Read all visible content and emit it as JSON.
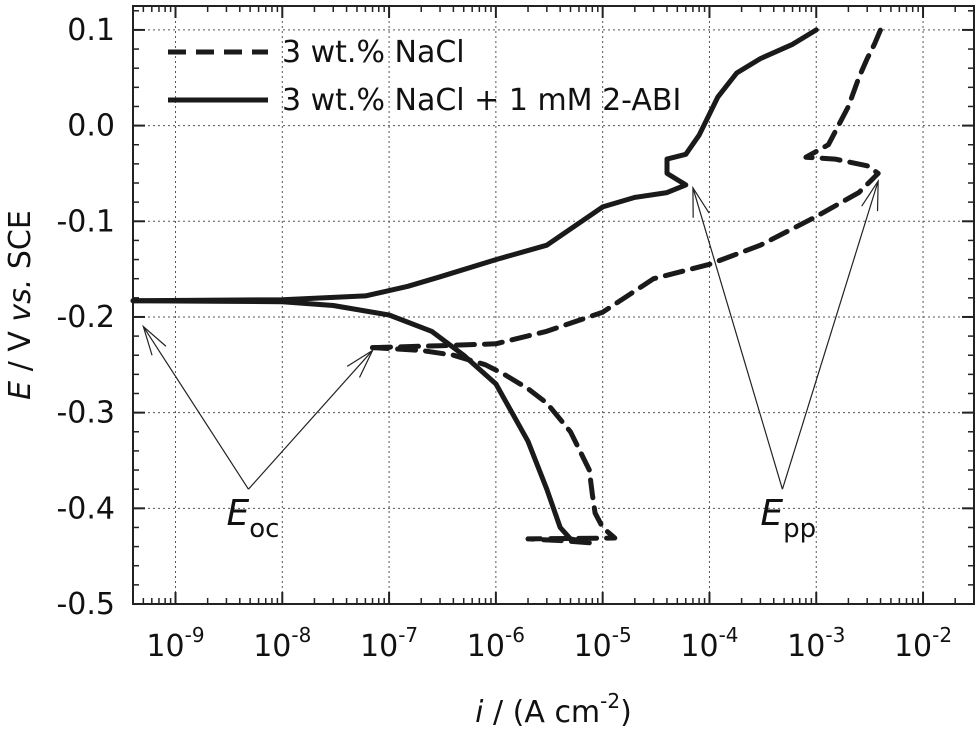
{
  "chart_data": {
    "type": "line",
    "xlabel": {
      "italic": "i",
      "text": " / (A cm",
      "sup": "-2",
      "end": ")"
    },
    "ylabel": {
      "italic": "E",
      "text": " / V ",
      "italic2": "vs.",
      "text2": " SCE"
    },
    "x_scale": "log",
    "xlim": [
      4e-10,
      0.03
    ],
    "ylim": [
      -0.5,
      0.125
    ],
    "x_ticks": [
      {
        "value": 1e-09,
        "base": "10",
        "exp": "-9"
      },
      {
        "value": 1e-08,
        "base": "10",
        "exp": "-8"
      },
      {
        "value": 1e-07,
        "base": "10",
        "exp": "-7"
      },
      {
        "value": 1e-06,
        "base": "10",
        "exp": "-6"
      },
      {
        "value": 1e-05,
        "base": "10",
        "exp": "-5"
      },
      {
        "value": 0.0001,
        "base": "10",
        "exp": "-4"
      },
      {
        "value": 0.001,
        "base": "10",
        "exp": "-3"
      },
      {
        "value": 0.01,
        "base": "10",
        "exp": "-2"
      }
    ],
    "y_ticks": [
      {
        "value": 0.1,
        "label": "0.1"
      },
      {
        "value": 0.0,
        "label": "0.0"
      },
      {
        "value": -0.1,
        "label": "-0.1"
      },
      {
        "value": -0.2,
        "label": "-0.2"
      },
      {
        "value": -0.3,
        "label": "-0.3"
      },
      {
        "value": -0.4,
        "label": "-0.4"
      },
      {
        "value": -0.5,
        "label": "-0.5"
      }
    ],
    "grid": true,
    "legend_position": "top-left",
    "series": [
      {
        "name": "3 wt.% NaCl",
        "style": "dashed",
        "color": "#1a1a1a",
        "cathodic": [
          [
            7.5e-06,
            -0.436
          ],
          [
            4.5e-06,
            -0.434
          ],
          [
            2e-06,
            -0.432
          ],
          [
            1.3e-05,
            -0.431
          ],
          [
            1e-05,
            -0.42
          ],
          [
            8.5e-06,
            -0.405
          ],
          [
            8e-06,
            -0.385
          ],
          [
            7.5e-06,
            -0.36
          ],
          [
            5e-06,
            -0.32
          ],
          [
            3e-06,
            -0.29
          ],
          [
            2e-06,
            -0.275
          ],
          [
            1.2e-06,
            -0.26
          ],
          [
            8e-07,
            -0.25
          ],
          [
            4e-07,
            -0.24
          ],
          [
            2e-07,
            -0.235
          ],
          [
            7e-08,
            -0.232
          ]
        ],
        "anodic": [
          [
            7e-08,
            -0.232
          ],
          [
            3e-07,
            -0.23
          ],
          [
            1e-06,
            -0.228
          ],
          [
            3e-06,
            -0.215
          ],
          [
            1e-05,
            -0.195
          ],
          [
            3e-05,
            -0.16
          ],
          [
            0.0001,
            -0.145
          ],
          [
            0.0003,
            -0.125
          ],
          [
            0.001,
            -0.095
          ],
          [
            0.0025,
            -0.07
          ],
          [
            0.0038,
            -0.05
          ],
          [
            0.003,
            -0.042
          ],
          [
            0.0015,
            -0.035
          ],
          [
            0.0008,
            -0.033
          ],
          [
            0.0013,
            -0.02
          ],
          [
            0.002,
            0.02
          ],
          [
            0.0025,
            0.05
          ],
          [
            0.003,
            0.07
          ],
          [
            0.0035,
            0.085
          ],
          [
            0.004,
            0.1
          ]
        ]
      },
      {
        "name": "3 wt.% NaCl + 1 mM 2-ABI",
        "style": "solid",
        "color": "#1a1a1a",
        "cathodic": [
          [
            7e-06,
            -0.435
          ],
          [
            5e-06,
            -0.432
          ],
          [
            4e-06,
            -0.42
          ],
          [
            3e-06,
            -0.38
          ],
          [
            2e-06,
            -0.33
          ],
          [
            1e-06,
            -0.27
          ],
          [
            5e-07,
            -0.24
          ],
          [
            2.5e-07,
            -0.215
          ],
          [
            1e-07,
            -0.198
          ],
          [
            3e-08,
            -0.188
          ],
          [
            1e-08,
            -0.184
          ],
          [
            4e-10,
            -0.183
          ]
        ],
        "anodic": [
          [
            4e-10,
            -0.183
          ],
          [
            1e-08,
            -0.182
          ],
          [
            6e-08,
            -0.178
          ],
          [
            1.5e-07,
            -0.168
          ],
          [
            3e-07,
            -0.158
          ],
          [
            1e-06,
            -0.14
          ],
          [
            3e-06,
            -0.125
          ],
          [
            1e-05,
            -0.085
          ],
          [
            2e-05,
            -0.075
          ],
          [
            4e-05,
            -0.07
          ],
          [
            6e-05,
            -0.062
          ],
          [
            4e-05,
            -0.05
          ],
          [
            4e-05,
            -0.035
          ],
          [
            6e-05,
            -0.03
          ],
          [
            8e-05,
            -0.01
          ],
          [
            0.00012,
            0.03
          ],
          [
            0.00018,
            0.055
          ],
          [
            0.0003,
            0.07
          ],
          [
            0.0006,
            0.085
          ],
          [
            0.001,
            0.1
          ]
        ]
      }
    ],
    "annotations": [
      {
        "id": "eoc",
        "main": "E",
        "sub": "oc",
        "x": 3e-09,
        "y": -0.38,
        "targets": [
          [
            5e-10,
            -0.21
          ],
          [
            7e-08,
            -0.235
          ]
        ]
      },
      {
        "id": "epp",
        "main": "E",
        "sub": "pp",
        "x": 0.0003,
        "y": -0.38,
        "targets": [
          [
            7e-05,
            -0.065
          ],
          [
            0.0038,
            -0.058
          ]
        ]
      }
    ]
  }
}
